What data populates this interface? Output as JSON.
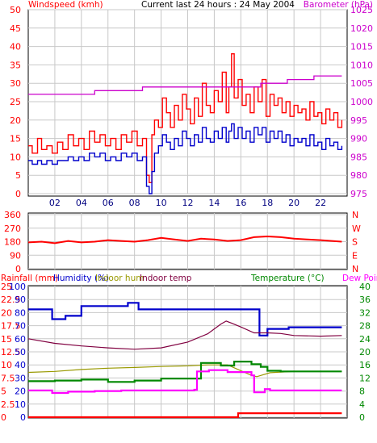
{
  "header": {
    "title": "Current last 24 hours : 24 May 2004"
  },
  "chart_data": [
    {
      "type": "line",
      "panel": "wind-baro",
      "left_label": "Windspeed (kmh)",
      "right_label": "Barometer (hPa)",
      "ylim_left": [
        0,
        50
      ],
      "yticks_left": [
        "0",
        "5",
        "10",
        "15",
        "20",
        "25",
        "30",
        "35",
        "40",
        "45",
        "50"
      ],
      "ylim_right": [
        975,
        1025
      ],
      "yticks_right": [
        "975",
        "980",
        "985",
        "990",
        "995",
        "1000",
        "1005",
        "1010",
        "1015",
        "1020",
        "1025"
      ],
      "xlim": [
        0,
        24
      ],
      "x_ticks": [
        "02",
        "04",
        "06",
        "08",
        "10",
        "12",
        "14",
        "16",
        "18",
        "20",
        "22"
      ],
      "grid": true,
      "series": [
        {
          "key": "gust",
          "color": "#ff0000",
          "axis": "left",
          "x": [
            0,
            0.3,
            0.7,
            1,
            1.4,
            1.8,
            2.2,
            2.6,
            3,
            3.4,
            3.8,
            4.2,
            4.6,
            5,
            5.4,
            5.8,
            6.2,
            6.6,
            7,
            7.4,
            7.8,
            8.2,
            8.6,
            8.9,
            9.1,
            9.3,
            9.5,
            9.8,
            10.1,
            10.4,
            10.7,
            11,
            11.3,
            11.6,
            11.9,
            12.2,
            12.5,
            12.8,
            13.1,
            13.4,
            13.7,
            14,
            14.3,
            14.6,
            14.9,
            15.1,
            15.3,
            15.5,
            15.8,
            16.1,
            16.4,
            16.7,
            17,
            17.3,
            17.6,
            17.9,
            18.2,
            18.5,
            18.8,
            19.1,
            19.4,
            19.7,
            20,
            20.3,
            20.6,
            20.9,
            21.2,
            21.5,
            21.8,
            22.1,
            22.4,
            22.7,
            23,
            23.3,
            23.6
          ],
          "y": [
            13,
            11,
            15,
            12,
            13,
            11,
            14,
            12,
            16,
            13,
            15,
            12,
            17,
            14,
            16,
            13,
            15,
            12,
            16,
            14,
            17,
            13,
            15,
            5,
            3,
            16,
            20,
            18,
            26,
            22,
            18,
            24,
            20,
            27,
            23,
            19,
            26,
            21,
            30,
            24,
            22,
            28,
            25,
            33,
            22,
            29,
            38,
            26,
            31,
            24,
            27,
            22,
            29,
            25,
            31,
            21,
            27,
            24,
            26,
            22,
            25,
            21,
            24,
            22,
            23,
            20,
            25,
            21,
            22,
            19,
            23,
            20,
            22,
            18,
            20
          ]
        },
        {
          "key": "average",
          "color": "#0000cc",
          "axis": "left",
          "x": [
            0,
            0.3,
            0.7,
            1,
            1.4,
            1.8,
            2.2,
            2.6,
            3,
            3.4,
            3.8,
            4.2,
            4.6,
            5,
            5.4,
            5.8,
            6.2,
            6.6,
            7,
            7.4,
            7.8,
            8.2,
            8.6,
            8.9,
            9.1,
            9.3,
            9.5,
            9.8,
            10.1,
            10.4,
            10.7,
            11,
            11.3,
            11.6,
            11.9,
            12.2,
            12.5,
            12.8,
            13.1,
            13.4,
            13.7,
            14,
            14.3,
            14.6,
            14.9,
            15.1,
            15.3,
            15.5,
            15.8,
            16.1,
            16.4,
            16.7,
            17,
            17.3,
            17.6,
            17.9,
            18.2,
            18.5,
            18.8,
            19.1,
            19.4,
            19.7,
            20,
            20.3,
            20.6,
            20.9,
            21.2,
            21.5,
            21.8,
            22.1,
            22.4,
            22.7,
            23,
            23.3,
            23.6
          ],
          "y": [
            9,
            8,
            9,
            8,
            9,
            8,
            9,
            9,
            10,
            9,
            10,
            9,
            11,
            10,
            11,
            9,
            10,
            9,
            11,
            10,
            11,
            9,
            10,
            2,
            0,
            6,
            11,
            13,
            16,
            14,
            12,
            15,
            13,
            17,
            15,
            13,
            16,
            14,
            18,
            15,
            14,
            17,
            15,
            18,
            14,
            17,
            19,
            15,
            18,
            15,
            17,
            14,
            18,
            16,
            18,
            14,
            17,
            15,
            17,
            14,
            16,
            13,
            15,
            14,
            15,
            13,
            16,
            13,
            14,
            12,
            15,
            13,
            14,
            12,
            13
          ]
        },
        {
          "key": "barometer",
          "color": "#cc00cc",
          "axis": "right",
          "x": [
            0,
            3,
            4.3,
            4.6,
            5,
            6.5,
            8.4,
            8.6,
            9.2,
            12,
            13,
            15,
            16,
            17.4,
            17.5,
            19,
            19.5,
            21,
            21.5,
            23.6
          ],
          "y": [
            1002,
            1002,
            1002,
            1002,
            1003,
            1003,
            1003,
            1004,
            1004,
            1004,
            1004,
            1004,
            1004,
            1004,
            1005,
            1005,
            1006,
            1006,
            1007,
            1007
          ]
        }
      ]
    },
    {
      "type": "scatter",
      "panel": "wind-direction",
      "ylim": [
        0,
        360
      ],
      "yticks": [
        "0",
        "90",
        "180",
        "270",
        "360"
      ],
      "yticks_right": [
        "N",
        "E",
        "S",
        "W",
        "N"
      ],
      "xlim": [
        0,
        24
      ],
      "grid": true,
      "series": [
        {
          "key": "direction",
          "color": "#ff0000",
          "x": [
            0,
            1,
            2,
            3,
            4,
            5,
            6,
            7,
            8,
            9,
            10,
            11,
            12,
            13,
            14,
            15,
            16,
            17,
            18,
            19,
            20,
            21,
            22,
            23.6
          ],
          "y": [
            175,
            180,
            170,
            185,
            175,
            180,
            190,
            185,
            180,
            190,
            205,
            195,
            185,
            200,
            195,
            185,
            190,
            210,
            215,
            210,
            200,
            195,
            190,
            180
          ]
        }
      ]
    },
    {
      "type": "line",
      "panel": "rain-temp-humidity",
      "legend": [
        "Rainfall (mm)",
        "Humidity (%)",
        "Indoor hum",
        "Indoor temp",
        "Temperature (°C)",
        "Dew Point"
      ],
      "yticks_rain": [
        "0",
        "2.5",
        "5",
        "7.5",
        "10",
        "12.5",
        "15",
        "17.5",
        "20",
        "22.5",
        "25"
      ],
      "yticks_humidity": [
        "0",
        "10",
        "20",
        "30",
        "40",
        "50",
        "60",
        "70",
        "80",
        "90",
        "100"
      ],
      "yticks_temp": [
        "0",
        "4",
        "8",
        "12",
        "16",
        "20",
        "24",
        "28",
        "32",
        "36",
        "40"
      ],
      "ylim_temp": [
        0,
        40
      ],
      "xlim": [
        0,
        24
      ],
      "grid": true,
      "series": [
        {
          "key": "rainfall",
          "color": "#ff0000",
          "axis": "temp",
          "x": [
            0,
            15.6,
            15.8,
            23.6
          ],
          "y": [
            0,
            0,
            1.2,
            1.2
          ]
        },
        {
          "key": "humidity",
          "color": "#0000cc",
          "axis": "temp",
          "x": [
            0,
            1,
            1.8,
            2.8,
            4,
            5.5,
            7.5,
            7.8,
            8.3,
            16.4,
            16.8,
            17.4,
            18,
            18.4,
            19.6,
            21,
            23.6
          ],
          "y": [
            33,
            33,
            30,
            31,
            34,
            34,
            35,
            35,
            33,
            33,
            33,
            25,
            27,
            27,
            27.5,
            27.5,
            27.5
          ]
        },
        {
          "key": "indoor_hum",
          "color": "#999900",
          "axis": "temp",
          "x": [
            0,
            2,
            4,
            6,
            8,
            10,
            12,
            13.5,
            15,
            16.8,
            17.2,
            18.2,
            20,
            23.6
          ],
          "y": [
            13.7,
            14,
            14.6,
            15,
            15.2,
            15.5,
            15.7,
            16,
            16,
            12.8,
            12.4,
            13.6,
            14,
            14
          ]
        },
        {
          "key": "indoor_temp",
          "color": "#800040",
          "axis": "temp",
          "x": [
            0,
            2,
            4,
            6,
            8,
            10,
            12,
            13.5,
            14.5,
            14.9,
            15.3,
            16,
            17,
            18,
            19,
            20,
            22,
            23.6
          ],
          "y": [
            24,
            22.6,
            21.8,
            21.2,
            20.8,
            21.2,
            23,
            25.5,
            28.5,
            29.4,
            28.8,
            27.6,
            25.8,
            25.8,
            25.6,
            25,
            24.8,
            25
          ]
        },
        {
          "key": "temperature",
          "color": "#008800",
          "axis": "temp",
          "x": [
            0,
            2,
            4,
            6,
            8,
            10,
            12,
            12.8,
            13,
            14.5,
            15.5,
            16.8,
            17.5,
            18,
            19,
            20,
            21,
            23.6
          ],
          "y": [
            11,
            11.2,
            11.5,
            10.8,
            11.2,
            11.8,
            11.8,
            11.8,
            16.6,
            15.8,
            17,
            16.2,
            15.4,
            14.2,
            14,
            14,
            14,
            14
          ]
        },
        {
          "key": "dew_point",
          "color": "#ff00ff",
          "axis": "temp",
          "x": [
            0,
            1.5,
            1.8,
            3,
            5,
            7,
            10,
            12.5,
            12.7,
            13.6,
            15,
            16.8,
            17,
            17.8,
            18.2,
            19.4,
            23.6
          ],
          "y": [
            8.2,
            8.2,
            7.4,
            7.8,
            8,
            8.2,
            8.2,
            8.4,
            14,
            14.4,
            13.8,
            12.8,
            7.6,
            8.6,
            8.2,
            8.2,
            8.2
          ]
        }
      ]
    }
  ]
}
